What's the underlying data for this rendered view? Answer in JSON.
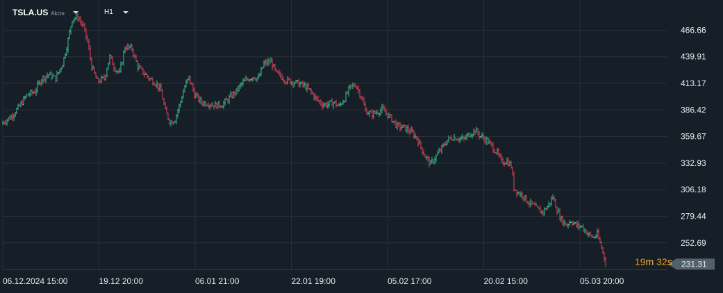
{
  "toolbar": {
    "symbol": "TSLA.US",
    "instrument_type": "Akcie",
    "timeframe": "H1",
    "icons": [
      "chevron-down-icon",
      "chevron-down-icon"
    ]
  },
  "countdown": {
    "minutes": "19",
    "minutes_unit": "m",
    "seconds": "32",
    "seconds_unit": "s",
    "color": "#f39c12"
  },
  "colors": {
    "background": "#161f27",
    "grid": "#26323b",
    "bull": "#3fbf8f",
    "bear": "#e0435a",
    "price_tag": "#50616c"
  },
  "chart_data": {
    "type": "ohlc",
    "instrument": "TSLA.US",
    "interval": "H1",
    "x_ticks": [
      "06.12.2024 15:00",
      "19.12 20:00",
      "06.01 21:00",
      "22.01 19:00",
      "05.02 17:00",
      "20.02 15:00",
      "05.03 20:00"
    ],
    "y_ticks": [
      "466.66",
      "439.91",
      "413.17",
      "386.42",
      "359.67",
      "332.93",
      "306.18",
      "279.44",
      "252.69"
    ],
    "ylim": [
      226.0,
      497.0
    ],
    "current_price": "231.31",
    "grid": true,
    "close_path": [
      [
        0,
        372
      ],
      [
        15,
        379
      ],
      [
        28,
        390
      ],
      [
        38,
        401
      ],
      [
        50,
        405
      ],
      [
        60,
        418
      ],
      [
        70,
        422
      ],
      [
        80,
        418
      ],
      [
        90,
        433
      ],
      [
        96,
        450
      ],
      [
        104,
        478
      ],
      [
        112,
        480
      ],
      [
        120,
        470
      ],
      [
        126,
        455
      ],
      [
        132,
        430
      ],
      [
        140,
        415
      ],
      [
        150,
        418
      ],
      [
        158,
        440
      ],
      [
        164,
        430
      ],
      [
        172,
        423
      ],
      [
        180,
        450
      ],
      [
        190,
        448
      ],
      [
        198,
        430
      ],
      [
        205,
        425
      ],
      [
        215,
        418
      ],
      [
        225,
        413
      ],
      [
        232,
        405
      ],
      [
        238,
        385
      ],
      [
        245,
        374
      ],
      [
        252,
        377
      ],
      [
        260,
        395
      ],
      [
        266,
        410
      ],
      [
        272,
        419
      ],
      [
        280,
        402
      ],
      [
        290,
        394
      ],
      [
        300,
        393
      ],
      [
        310,
        391
      ],
      [
        320,
        392
      ],
      [
        328,
        397
      ],
      [
        340,
        405
      ],
      [
        348,
        413
      ],
      [
        356,
        417
      ],
      [
        364,
        420
      ],
      [
        372,
        418
      ],
      [
        380,
        433
      ],
      [
        390,
        435
      ],
      [
        398,
        423
      ],
      [
        405,
        420
      ],
      [
        412,
        416
      ],
      [
        420,
        415
      ],
      [
        430,
        413
      ],
      [
        440,
        410
      ],
      [
        448,
        404
      ],
      [
        456,
        397
      ],
      [
        464,
        392
      ],
      [
        472,
        392
      ],
      [
        480,
        394
      ],
      [
        488,
        390
      ],
      [
        496,
        398
      ],
      [
        504,
        409
      ],
      [
        512,
        412
      ],
      [
        520,
        400
      ],
      [
        526,
        386
      ],
      [
        534,
        382
      ],
      [
        542,
        384
      ],
      [
        550,
        387
      ],
      [
        556,
        383
      ],
      [
        564,
        377
      ],
      [
        572,
        370
      ],
      [
        580,
        369
      ],
      [
        586,
        367
      ],
      [
        594,
        363
      ],
      [
        600,
        358
      ],
      [
        606,
        349
      ],
      [
        612,
        340
      ],
      [
        620,
        332
      ],
      [
        628,
        340
      ],
      [
        636,
        348
      ],
      [
        644,
        356
      ],
      [
        652,
        359
      ],
      [
        660,
        358
      ],
      [
        668,
        357
      ],
      [
        676,
        362
      ],
      [
        684,
        366
      ],
      [
        692,
        360
      ],
      [
        700,
        356
      ],
      [
        708,
        350
      ],
      [
        716,
        343
      ],
      [
        722,
        334
      ],
      [
        730,
        335
      ],
      [
        736,
        330
      ],
      [
        740,
        308
      ],
      [
        746,
        303
      ],
      [
        752,
        301
      ],
      [
        760,
        294
      ],
      [
        768,
        290
      ],
      [
        776,
        285
      ],
      [
        782,
        284
      ],
      [
        790,
        291
      ],
      [
        796,
        299
      ],
      [
        802,
        286
      ],
      [
        808,
        276
      ],
      [
        816,
        271
      ],
      [
        822,
        275
      ],
      [
        830,
        270
      ],
      [
        838,
        269
      ],
      [
        846,
        262
      ],
      [
        854,
        258
      ],
      [
        860,
        261
      ],
      [
        866,
        248
      ],
      [
        870,
        238
      ],
      [
        873,
        231.31
      ]
    ]
  }
}
